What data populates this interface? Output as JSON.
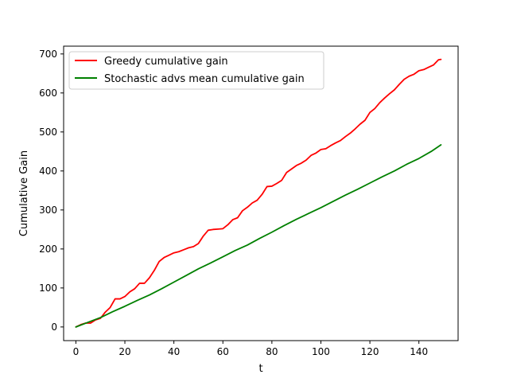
{
  "chart_data": {
    "type": "line",
    "title": "",
    "xlabel": "t",
    "ylabel": "Cumulative Gain",
    "xlim": [
      -5,
      156
    ],
    "ylim": [
      -35,
      720
    ],
    "xticks": [
      0,
      20,
      40,
      60,
      80,
      100,
      120,
      140
    ],
    "yticks": [
      0,
      100,
      200,
      300,
      400,
      500,
      600,
      700
    ],
    "grid": false,
    "legend_position": "top-left",
    "series": [
      {
        "name": "Greedy cumulative gain",
        "color": "#ff0000",
        "points": [
          [
            0,
            0
          ],
          [
            2,
            6
          ],
          [
            4,
            10
          ],
          [
            6,
            10
          ],
          [
            8,
            18
          ],
          [
            10,
            22
          ],
          [
            12,
            38
          ],
          [
            14,
            50
          ],
          [
            16,
            72
          ],
          [
            18,
            72
          ],
          [
            20,
            78
          ],
          [
            22,
            90
          ],
          [
            24,
            98
          ],
          [
            26,
            112
          ],
          [
            28,
            112
          ],
          [
            30,
            126
          ],
          [
            32,
            145
          ],
          [
            34,
            168
          ],
          [
            36,
            178
          ],
          [
            38,
            184
          ],
          [
            40,
            190
          ],
          [
            42,
            193
          ],
          [
            44,
            198
          ],
          [
            46,
            203
          ],
          [
            48,
            206
          ],
          [
            50,
            214
          ],
          [
            52,
            233
          ],
          [
            54,
            248
          ],
          [
            56,
            250
          ],
          [
            58,
            251
          ],
          [
            60,
            252
          ],
          [
            62,
            262
          ],
          [
            64,
            275
          ],
          [
            66,
            280
          ],
          [
            68,
            298
          ],
          [
            70,
            307
          ],
          [
            72,
            318
          ],
          [
            74,
            325
          ],
          [
            76,
            340
          ],
          [
            78,
            360
          ],
          [
            80,
            361
          ],
          [
            82,
            368
          ],
          [
            84,
            376
          ],
          [
            86,
            396
          ],
          [
            88,
            405
          ],
          [
            90,
            414
          ],
          [
            92,
            420
          ],
          [
            94,
            428
          ],
          [
            96,
            440
          ],
          [
            98,
            446
          ],
          [
            100,
            455
          ],
          [
            102,
            457
          ],
          [
            104,
            465
          ],
          [
            106,
            472
          ],
          [
            108,
            478
          ],
          [
            110,
            488
          ],
          [
            112,
            497
          ],
          [
            114,
            508
          ],
          [
            116,
            520
          ],
          [
            118,
            530
          ],
          [
            120,
            550
          ],
          [
            122,
            560
          ],
          [
            124,
            575
          ],
          [
            126,
            587
          ],
          [
            128,
            598
          ],
          [
            130,
            608
          ],
          [
            132,
            622
          ],
          [
            134,
            635
          ],
          [
            136,
            643
          ],
          [
            138,
            648
          ],
          [
            140,
            657
          ],
          [
            142,
            660
          ],
          [
            144,
            666
          ],
          [
            146,
            672
          ],
          [
            148,
            685
          ],
          [
            149,
            686
          ]
        ]
      },
      {
        "name": "Stochastic advs mean cumulative gain",
        "color": "#008000",
        "points": [
          [
            0,
            0
          ],
          [
            5,
            12
          ],
          [
            10,
            24
          ],
          [
            15,
            39
          ],
          [
            20,
            53
          ],
          [
            25,
            68
          ],
          [
            30,
            82
          ],
          [
            35,
            98
          ],
          [
            40,
            115
          ],
          [
            45,
            132
          ],
          [
            50,
            149
          ],
          [
            55,
            164
          ],
          [
            60,
            180
          ],
          [
            65,
            196
          ],
          [
            70,
            210
          ],
          [
            75,
            227
          ],
          [
            80,
            243
          ],
          [
            85,
            260
          ],
          [
            90,
            276
          ],
          [
            95,
            291
          ],
          [
            100,
            306
          ],
          [
            105,
            322
          ],
          [
            110,
            338
          ],
          [
            115,
            353
          ],
          [
            120,
            369
          ],
          [
            125,
            385
          ],
          [
            130,
            400
          ],
          [
            135,
            417
          ],
          [
            140,
            432
          ],
          [
            145,
            450
          ],
          [
            149,
            467
          ]
        ]
      }
    ]
  }
}
